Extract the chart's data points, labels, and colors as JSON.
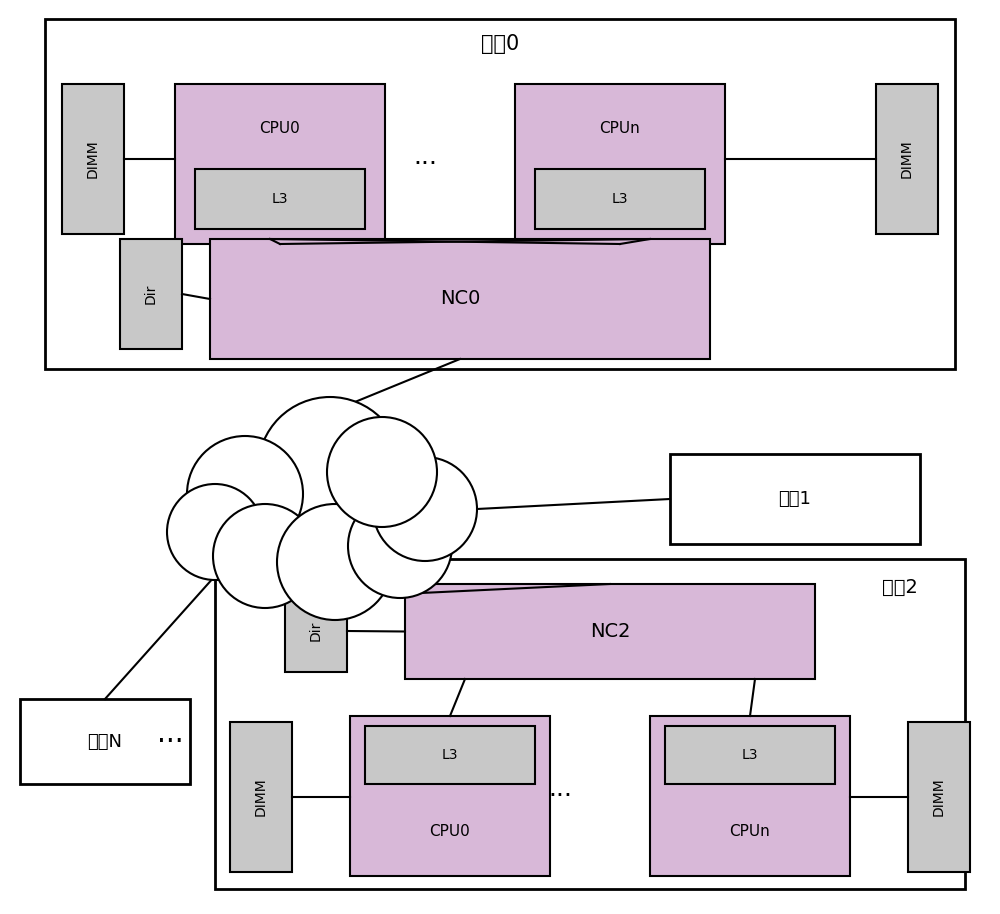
{
  "bg_color": "#ffffff",
  "box_fill_light": "#c8c8c8",
  "box_fill_pink": "#d8b8d8",
  "node0_label": "节点0",
  "node1_label": "节点1",
  "node2_label": "节点2",
  "nodeN_label": "节点N",
  "cpu0_label": "CPU0",
  "cpun_label": "CPUn",
  "l3_label": "L3",
  "nc0_label": "NC0",
  "nc2_label": "NC2",
  "dir_label": "Dir",
  "dimm_label": "DIMM",
  "dots": "···"
}
